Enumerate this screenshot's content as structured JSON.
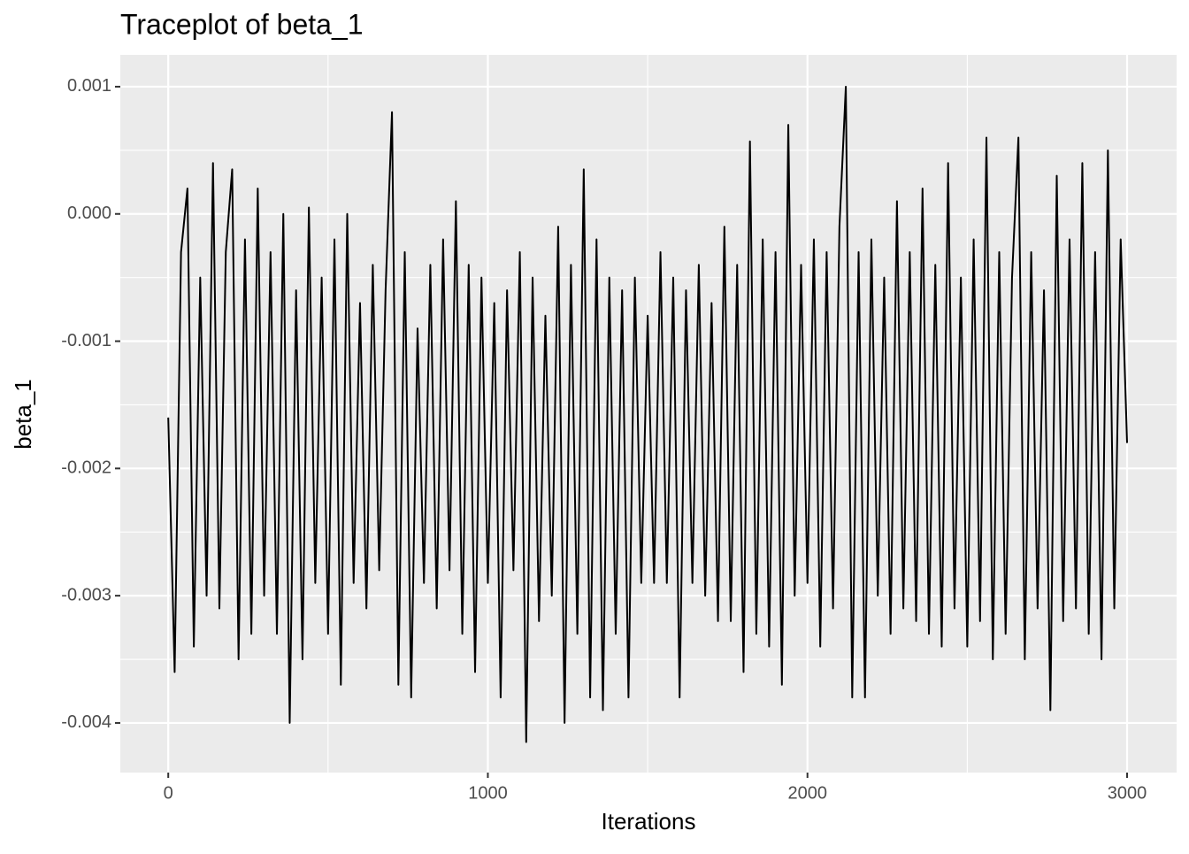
{
  "chart_data": {
    "type": "line",
    "title": "Traceplot of  beta_1",
    "x_label": "Iterations",
    "y_label": "beta_1",
    "xlim": [
      -150,
      3155
    ],
    "ylim": [
      -0.00439,
      0.00125
    ],
    "xticks": [
      0,
      1000,
      2000,
      3000
    ],
    "xminorticks": [
      500,
      1500,
      2500
    ],
    "yticks": [
      0.001,
      {
        "value": 0,
        "label": "0.000"
      },
      -0.001,
      -0.002,
      -0.003,
      -0.004
    ],
    "yminorticks": [
      0.0005,
      -0.0005,
      -0.0015,
      -0.0025,
      -0.0035
    ],
    "grid": true,
    "panel_color": "#ebebeb",
    "series": [
      {
        "name": "beta_1",
        "color": "#000000",
        "x": [
          0,
          20,
          40,
          60,
          80,
          100,
          120,
          140,
          160,
          180,
          200,
          220,
          240,
          260,
          280,
          300,
          320,
          340,
          360,
          380,
          400,
          420,
          440,
          460,
          480,
          500,
          520,
          540,
          560,
          580,
          600,
          620,
          640,
          660,
          680,
          700,
          720,
          740,
          760,
          780,
          800,
          820,
          840,
          860,
          880,
          900,
          920,
          940,
          960,
          980,
          1000,
          1020,
          1040,
          1060,
          1080,
          1100,
          1120,
          1140,
          1160,
          1180,
          1200,
          1220,
          1240,
          1260,
          1280,
          1300,
          1320,
          1340,
          1360,
          1380,
          1400,
          1420,
          1440,
          1460,
          1480,
          1500,
          1520,
          1540,
          1560,
          1580,
          1600,
          1620,
          1640,
          1660,
          1680,
          1700,
          1720,
          1740,
          1760,
          1780,
          1800,
          1820,
          1840,
          1860,
          1880,
          1900,
          1920,
          1940,
          1960,
          1980,
          2000,
          2020,
          2040,
          2060,
          2080,
          2100,
          2120,
          2140,
          2160,
          2180,
          2200,
          2220,
          2240,
          2260,
          2280,
          2300,
          2320,
          2340,
          2360,
          2380,
          2400,
          2420,
          2440,
          2460,
          2480,
          2500,
          2520,
          2540,
          2560,
          2580,
          2600,
          2620,
          2640,
          2660,
          2680,
          2700,
          2720,
          2740,
          2760,
          2780,
          2800,
          2820,
          2840,
          2860,
          2880,
          2900,
          2920,
          2940,
          2960,
          2980,
          3000
        ],
        "values": [
          -0.0016,
          -0.0036,
          -0.0003,
          0.0002,
          -0.0034,
          -0.0005,
          -0.003,
          0.0004,
          -0.0031,
          -0.0003,
          0.00035,
          -0.0035,
          -0.0002,
          -0.0033,
          0.0002,
          -0.003,
          -0.0003,
          -0.0033,
          0,
          -0.004,
          -0.0006,
          -0.0035,
          5e-05,
          -0.0029,
          -0.0005,
          -0.0033,
          -0.0002,
          -0.0037,
          0,
          -0.0029,
          -0.0007,
          -0.0031,
          -0.0004,
          -0.0028,
          -0.0006,
          0.0008,
          -0.0037,
          -0.0003,
          -0.0038,
          -0.0009,
          -0.0029,
          -0.0004,
          -0.0031,
          -0.0002,
          -0.0028,
          0.0001,
          -0.0033,
          -0.0004,
          -0.0036,
          -0.0005,
          -0.0029,
          -0.0007,
          -0.0038,
          -0.0006,
          -0.0028,
          -0.0003,
          -0.00415,
          -0.0005,
          -0.0032,
          -0.0008,
          -0.003,
          -0.0001,
          -0.004,
          -0.0004,
          -0.0033,
          0.00035,
          -0.0038,
          -0.0002,
          -0.0039,
          -0.0005,
          -0.0033,
          -0.0006,
          -0.0038,
          -0.0005,
          -0.0029,
          -0.0008,
          -0.0029,
          -0.0003,
          -0.0029,
          -0.0005,
          -0.0038,
          -0.0006,
          -0.0029,
          -0.0004,
          -0.003,
          -0.0007,
          -0.0032,
          -0.0001,
          -0.0032,
          -0.0004,
          -0.0036,
          0.00057,
          -0.0033,
          -0.0002,
          -0.0034,
          -0.0003,
          -0.0037,
          0.0007,
          -0.003,
          -0.0004,
          -0.0029,
          -0.0002,
          -0.0034,
          -0.0003,
          -0.0031,
          -0.0001,
          0.001,
          -0.0038,
          -0.0003,
          -0.0038,
          -0.0002,
          -0.003,
          -0.0005,
          -0.0033,
          0.0001,
          -0.0031,
          -0.0003,
          -0.0032,
          0.0002,
          -0.0033,
          -0.0004,
          -0.0034,
          0.0004,
          -0.0031,
          -0.0005,
          -0.0034,
          -0.0002,
          -0.0032,
          0.0006,
          -0.0035,
          -0.0003,
          -0.0033,
          -0.0005,
          0.0006,
          -0.0035,
          -0.0003,
          -0.0031,
          -0.0006,
          -0.0039,
          0.0003,
          -0.0032,
          -0.0002,
          -0.0031,
          0.0004,
          -0.0033,
          -0.0003,
          -0.0035,
          0.0005,
          -0.0031,
          -0.0002,
          -0.0018
        ]
      }
    ]
  }
}
